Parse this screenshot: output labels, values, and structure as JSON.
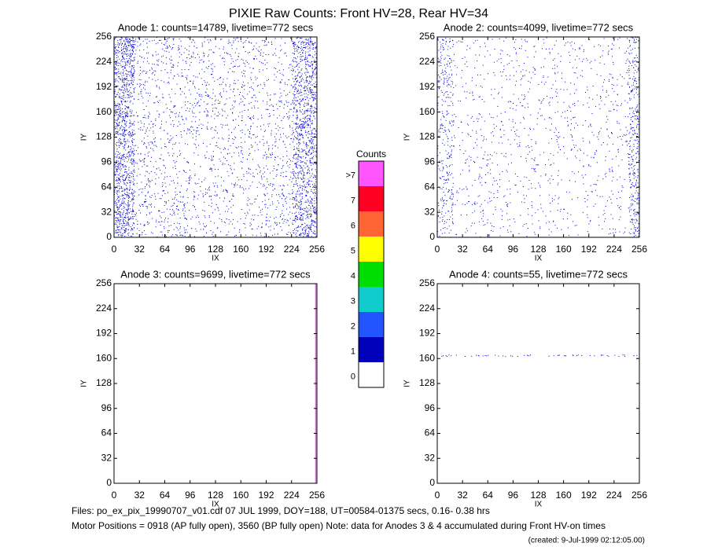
{
  "title": "PIXIE Raw Counts:  Front HV=28, Rear HV=34",
  "chart_data": [
    {
      "type": "heatmap",
      "title": "Anode 1: counts=14789, livetime=772 secs",
      "xlabel": "IX",
      "ylabel": "IY",
      "xlim": [
        0,
        256
      ],
      "ylim": [
        0,
        256
      ],
      "xticks": [
        0,
        32,
        64,
        96,
        128,
        160,
        192,
        224,
        256
      ],
      "yticks": [
        0,
        32,
        64,
        96,
        128,
        160,
        192,
        224,
        256
      ]
    },
    {
      "type": "heatmap",
      "title": "Anode 2: counts=4099, livetime=772 secs",
      "xlabel": "IX",
      "ylabel": "IY",
      "xlim": [
        0,
        256
      ],
      "ylim": [
        0,
        256
      ],
      "xticks": [
        0,
        32,
        64,
        96,
        128,
        160,
        192,
        224,
        256
      ],
      "yticks": [
        0,
        32,
        64,
        96,
        128,
        160,
        192,
        224,
        256
      ]
    },
    {
      "type": "heatmap",
      "title": "Anode 3: counts=9699, livetime=772 secs",
      "xlabel": "IX",
      "ylabel": "IY",
      "xlim": [
        0,
        256
      ],
      "ylim": [
        0,
        256
      ],
      "xticks": [
        0,
        32,
        64,
        96,
        128,
        160,
        192,
        224,
        256
      ],
      "yticks": [
        0,
        32,
        64,
        96,
        128,
        160,
        192,
        224,
        256
      ]
    },
    {
      "type": "heatmap",
      "title": "Anode 4: counts=55, livetime=772 secs",
      "xlabel": "IX",
      "ylabel": "IY",
      "xlim": [
        0,
        256
      ],
      "ylim": [
        0,
        256
      ],
      "xticks": [
        0,
        32,
        64,
        96,
        128,
        160,
        192,
        224,
        256
      ],
      "yticks": [
        0,
        32,
        64,
        96,
        128,
        160,
        192,
        224,
        256
      ]
    }
  ],
  "colorbar": {
    "title": "Counts",
    "labels": [
      ">7",
      "7",
      "6",
      "5",
      "4",
      "3",
      "2",
      "1",
      "0"
    ],
    "colors": [
      "#ff55ff",
      "#ff0022",
      "#ff6633",
      "#ffff00",
      "#00dd00",
      "#11cccc",
      "#2255ff",
      "#0000bb",
      "#ffffff"
    ]
  },
  "footer": {
    "files": "Files: po_ex_pix_19990707_v01.cdf    07 JUL 1999, DOY=188, UT=00584-01375 secs,  0.16- 0.38 hrs",
    "motor": "Motor Positions = 0918 (AP fully open), 3560 (BP fully open)    Note: data for Anodes 3 & 4 accumulated during Front HV-on times",
    "created": "(created:  9-Jul-1999 02:12:05.00)"
  }
}
